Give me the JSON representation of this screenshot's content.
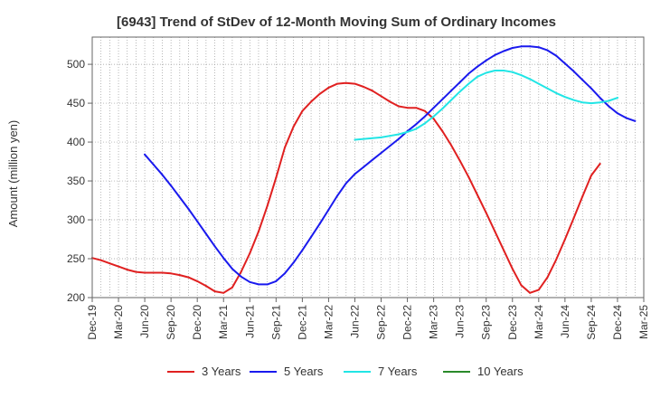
{
  "chart_data": {
    "type": "line",
    "title": "[6943]  Trend of StDev of 12-Month Moving Sum of Ordinary Incomes",
    "xlabel": "",
    "ylabel": "Amount (million yen)",
    "ylim": [
      200,
      535
    ],
    "yticks": [
      200,
      250,
      300,
      350,
      400,
      450,
      500
    ],
    "xticks": [
      "Dec-19",
      "Mar-20",
      "Jun-20",
      "Sep-20",
      "Dec-20",
      "Mar-21",
      "Jun-21",
      "Sep-21",
      "Dec-21",
      "Mar-22",
      "Jun-22",
      "Sep-22",
      "Dec-22",
      "Mar-23",
      "Jun-23",
      "Sep-23",
      "Dec-23",
      "Mar-24",
      "Jun-24",
      "Sep-24",
      "Dec-24",
      "Mar-25"
    ],
    "grid": true,
    "legend_position": "bottom",
    "series": [
      {
        "name": "3 Years",
        "color": "#e02020",
        "start_index": 0,
        "values": [
          251,
          248,
          244,
          240,
          236,
          233,
          232,
          232,
          232,
          231,
          229,
          226,
          221,
          215,
          208,
          206,
          213,
          233,
          257,
          285,
          318,
          354,
          393,
          420,
          440,
          452,
          462,
          470,
          475,
          476,
          475,
          471,
          466,
          459,
          452,
          446,
          444,
          444,
          440,
          430,
          414,
          396,
          376,
          355,
          332,
          309,
          285,
          261,
          237,
          216,
          206,
          210,
          226,
          249,
          275,
          302,
          330,
          357,
          372
        ]
      },
      {
        "name": "5 Years",
        "color": "#1a1aee",
        "start_index": 6,
        "values": [
          384,
          371,
          358,
          344,
          329,
          314,
          298,
          282,
          266,
          251,
          237,
          227,
          220,
          217,
          217,
          221,
          231,
          245,
          261,
          278,
          295,
          313,
          331,
          347,
          359,
          368,
          377,
          386,
          395,
          404,
          414,
          423,
          433,
          444,
          455,
          466,
          477,
          488,
          497,
          505,
          512,
          517,
          521,
          523,
          523,
          522,
          518,
          511,
          501,
          491,
          480,
          469,
          457,
          446,
          437,
          431,
          427
        ]
      },
      {
        "name": "7 Years",
        "color": "#22e5e5",
        "start_index": 30,
        "values": [
          403,
          404,
          405,
          406,
          408,
          410,
          413,
          417,
          424,
          433,
          443,
          454,
          465,
          475,
          484,
          489,
          492,
          492,
          490,
          486,
          481,
          475,
          469,
          463,
          458,
          454,
          451,
          450,
          451,
          453,
          457
        ]
      },
      {
        "name": "10 Years",
        "color": "#2a8a2a",
        "start_index": 0,
        "values": []
      }
    ]
  }
}
